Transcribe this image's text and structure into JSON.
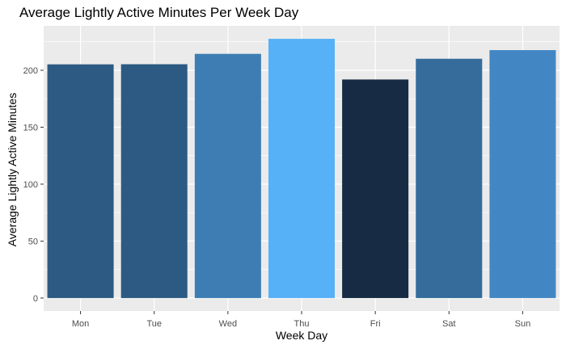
{
  "chart_data": {
    "type": "bar",
    "title": "Average Lightly Active Minutes Per Week Day",
    "xlabel": "Week Day",
    "ylabel": "Average Lightly Active Minutes",
    "categories": [
      "Mon",
      "Tue",
      "Wed",
      "Thu",
      "Fri",
      "Sat",
      "Sun"
    ],
    "values": [
      205.2,
      205.3,
      214.4,
      227.6,
      191.9,
      210.1,
      217.7
    ],
    "colors": [
      "#2c5a82",
      "#2c5a82",
      "#3d7db3",
      "#56b1f7",
      "#172b44",
      "#356c9c",
      "#4287c4"
    ],
    "ylim": [
      -11.4,
      239
    ],
    "yticks": [
      0,
      50,
      100,
      150,
      200
    ],
    "grid": true,
    "legend": "none",
    "panel_background": "#ebebeb",
    "grid_color": "#ffffff"
  }
}
